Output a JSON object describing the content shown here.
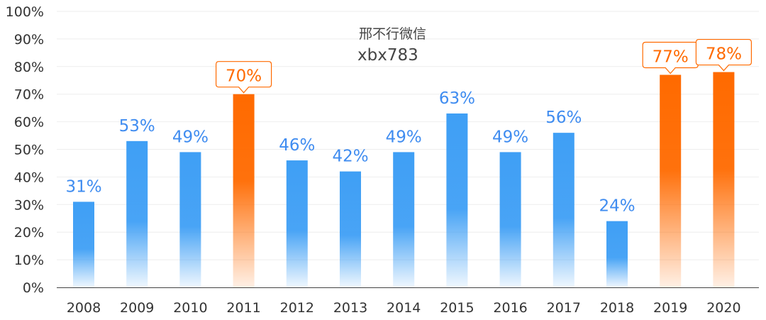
{
  "chart_data": {
    "type": "bar",
    "title": "",
    "xlabel": "",
    "ylabel": "",
    "categories": [
      "2008",
      "2009",
      "2010",
      "2011",
      "2012",
      "2013",
      "2014",
      "2015",
      "2016",
      "2017",
      "2018",
      "2019",
      "2020"
    ],
    "values": [
      31,
      53,
      49,
      70,
      46,
      42,
      49,
      63,
      49,
      56,
      24,
      77,
      78
    ],
    "data_labels": [
      "31%",
      "53%",
      "49%",
      "70%",
      "46%",
      "42%",
      "49%",
      "63%",
      "49%",
      "56%",
      "24%",
      "77%",
      "78%"
    ],
    "highlighted": [
      "2011",
      "2019",
      "2020"
    ],
    "yticks": [
      "0%",
      "10%",
      "20%",
      "30%",
      "40%",
      "50%",
      "60%",
      "70%",
      "80%",
      "90%",
      "100%"
    ],
    "ylim": [
      0,
      100
    ],
    "grid": true,
    "legend": "none",
    "colors": {
      "bar": "#3f9ff5",
      "bar_highlight": "#ff6a00",
      "label": "#3f8cf0",
      "label_highlight": "#ff6a00"
    }
  },
  "watermark": {
    "line1": "邢不行微信",
    "line2": "xbx783"
  }
}
